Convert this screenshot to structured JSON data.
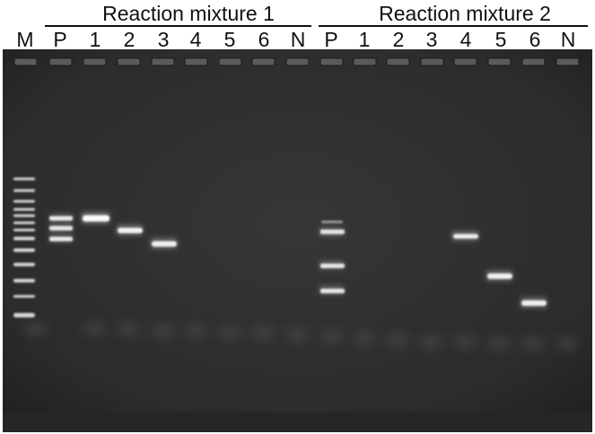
{
  "header": {
    "group1_title": "Reaction mixture 1",
    "group2_title": "Reaction mixture 2",
    "lanes": [
      "M",
      "P",
      "1",
      "2",
      "3",
      "4",
      "5",
      "6",
      "N",
      "P",
      "1",
      "2",
      "3",
      "4",
      "5",
      "6",
      "N"
    ]
  },
  "gel": {
    "background_color": "#2e2e2e",
    "band_color": "#f2f2f2"
  }
}
